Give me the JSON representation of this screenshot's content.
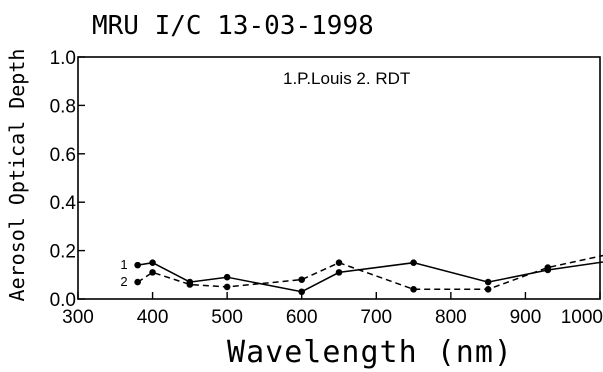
{
  "chart_data": {
    "type": "line",
    "title": "MRU I/C 13-03-1998",
    "xlabel": "Wavelength (nm)",
    "ylabel": "Aerosol Optical Depth",
    "annotation": "1.P.Louis 2. RDT",
    "xlim": [
      300,
      1000
    ],
    "ylim": [
      0.0,
      1.0
    ],
    "xticks": [
      300,
      400,
      500,
      600,
      700,
      800,
      900,
      1000
    ],
    "xtick_labels": [
      "300",
      "400",
      "500",
      "600",
      "700",
      "800",
      "900",
      "1000"
    ],
    "yticks": [
      0.0,
      0.2,
      0.4,
      0.6,
      0.8,
      1.0
    ],
    "ytick_labels": [
      "0.0",
      "0.2",
      "0.4",
      "0.6",
      "0.8",
      "1.0"
    ],
    "grid": false,
    "series": [
      {
        "name": "1",
        "line_style": "solid",
        "color": "#000000",
        "x": [
          380,
          400,
          450,
          500,
          600,
          650,
          750,
          850,
          930,
          1020
        ],
        "y": [
          0.14,
          0.15,
          0.07,
          0.09,
          0.03,
          0.11,
          0.15,
          0.07,
          0.12,
          0.16
        ]
      },
      {
        "name": "2",
        "line_style": "dashed",
        "color": "#000000",
        "x": [
          380,
          400,
          450,
          500,
          600,
          650,
          750,
          850,
          930,
          1020
        ],
        "y": [
          0.07,
          0.11,
          0.06,
          0.05,
          0.08,
          0.15,
          0.04,
          0.04,
          0.13,
          0.19
        ]
      }
    ]
  }
}
